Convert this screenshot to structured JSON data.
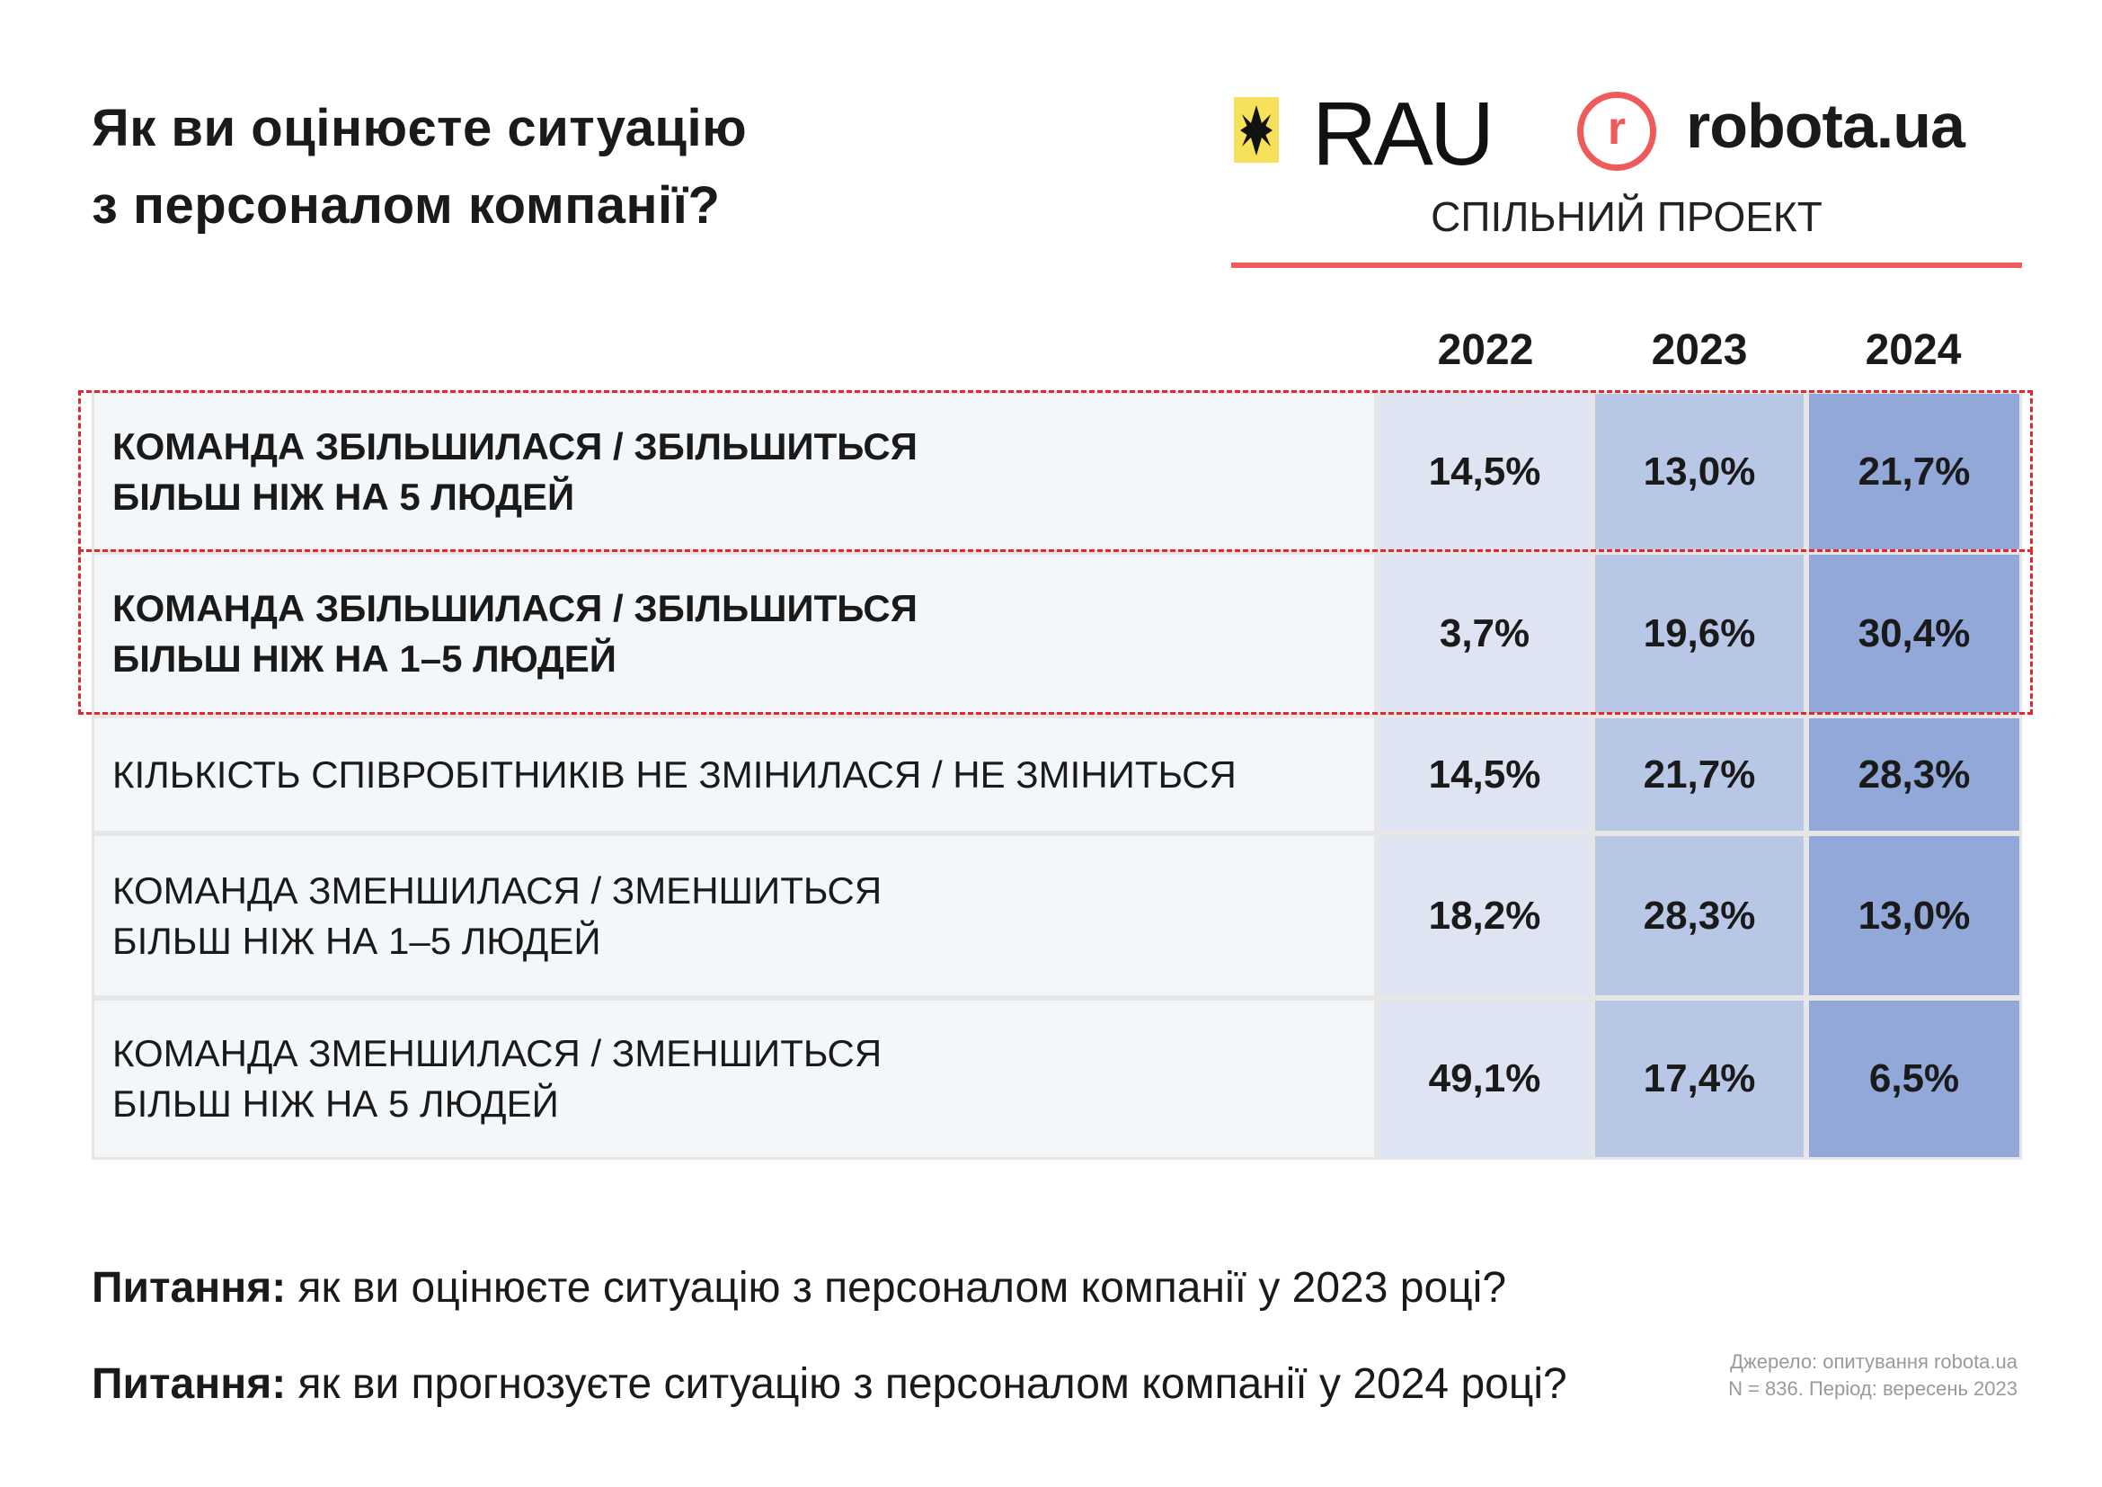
{
  "title_lines": [
    "Як ви оцінюєте ситуацію",
    "з персоналом компанії?"
  ],
  "logos": {
    "rau": "RAU",
    "robota_mark": "r",
    "robota": "robota.ua",
    "joint_project": "СПІЛЬНИЙ ПРОЕКТ"
  },
  "colors": {
    "accent_red": "#ef5b5b",
    "highlight_dash": "#e8252b",
    "col2022": "#dee4f2",
    "col2023": "#b9c7e7",
    "col2024": "#91a8d9",
    "rau_yellow": "#f7e15a"
  },
  "chart_data": {
    "type": "table",
    "title": "Як ви оцінюєте ситуацію з персоналом компанії?",
    "columns": [
      "2022",
      "2023",
      "2024"
    ],
    "rows": [
      {
        "label": [
          "КОМАНДА ЗБІЛЬШИЛАСЯ / ЗБІЛЬШИТЬСЯ",
          "БІЛЬШ НІЖ НА 5 ЛЮДЕЙ"
        ],
        "values": [
          "14,5%",
          "13,0%",
          "21,7%"
        ],
        "highlighted": true
      },
      {
        "label": [
          "КОМАНДА ЗБІЛЬШИЛАСЯ / ЗБІЛЬШИТЬСЯ",
          "БІЛЬШ НІЖ НА 1–5 ЛЮДЕЙ"
        ],
        "values": [
          "3,7%",
          "19,6%",
          "30,4%"
        ],
        "highlighted": true
      },
      {
        "label": [
          "КІЛЬКІСТЬ СПІВРОБІТНИКІВ НЕ ЗМІНИЛАСЯ / НЕ ЗМІНИТЬСЯ"
        ],
        "values": [
          "14,5%",
          "21,7%",
          "28,3%"
        ],
        "highlighted": false
      },
      {
        "label": [
          "КОМАНДА ЗМЕНШИЛАСЯ / ЗМЕНШИТЬСЯ",
          "БІЛЬШ НІЖ НА 1–5 ЛЮДЕЙ"
        ],
        "values": [
          "18,2%",
          "28,3%",
          "13,0%"
        ],
        "highlighted": false
      },
      {
        "label": [
          "КОМАНДА ЗМЕНШИЛАСЯ / ЗМЕНШИТЬСЯ",
          "БІЛЬШ НІЖ НА 5 ЛЮДЕЙ"
        ],
        "values": [
          "49,1%",
          "17,4%",
          "6,5%"
        ],
        "highlighted": false
      }
    ]
  },
  "questions": [
    {
      "label": "Питання:",
      "text": " як ви оцінюєте ситуацію з персоналом компанії у 2023 році?"
    },
    {
      "label": "Питання:",
      "text": " як ви прогнозуєте ситуацію з персоналом компанії у 2024 році?"
    }
  ],
  "source": [
    "Джерело: опитування robota.ua",
    "N = 836. Період: вересень 2023"
  ]
}
